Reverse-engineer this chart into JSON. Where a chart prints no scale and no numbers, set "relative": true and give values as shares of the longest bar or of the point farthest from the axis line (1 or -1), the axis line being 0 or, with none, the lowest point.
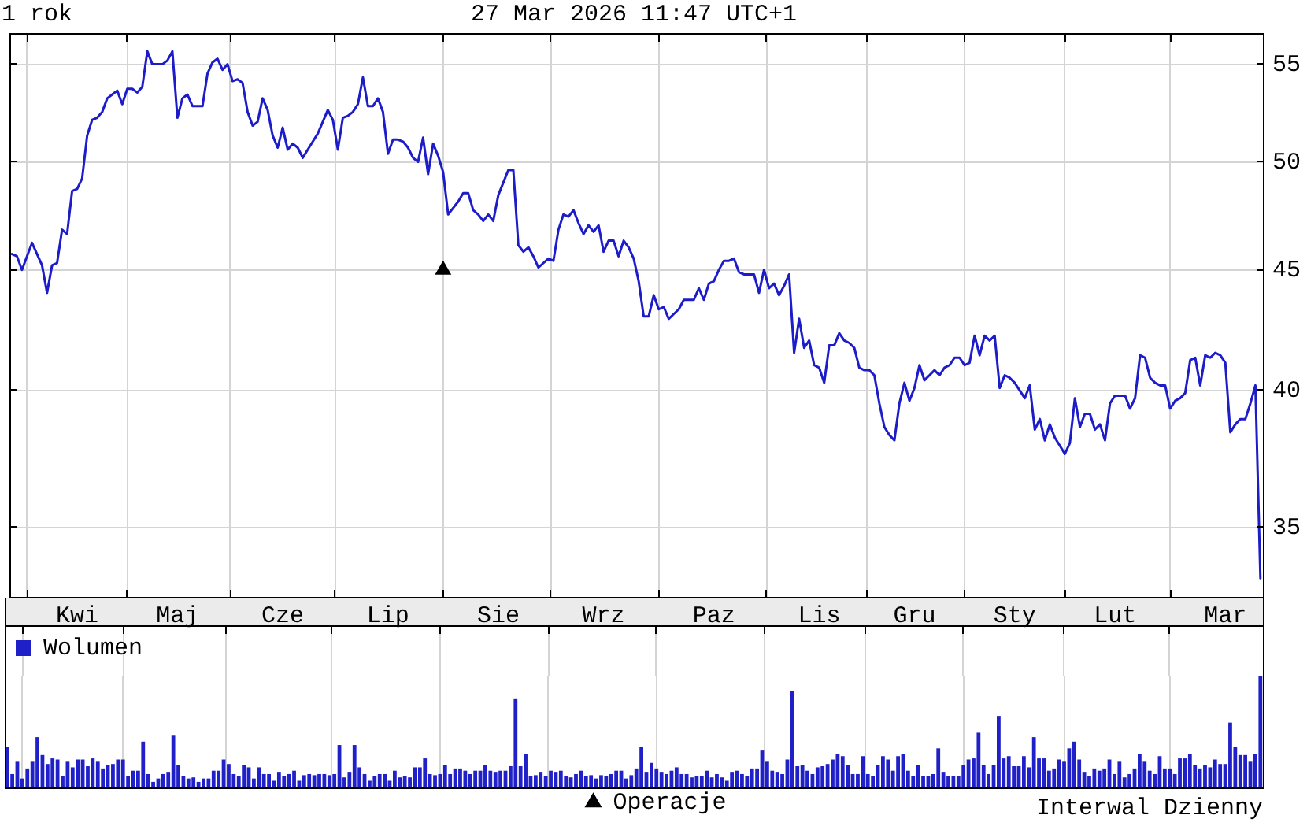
{
  "chart_data": [
    {
      "type": "line",
      "title": "1 rok",
      "subtitle": "27 Mar 2026 11:47 UTC+1",
      "annotations": [
        "Interwal Dzienny"
      ],
      "categories": [
        null,
        null,
        null,
        null,
        null,
        null,
        null,
        null,
        null,
        null,
        null,
        null,
        null,
        "Kwi",
        null,
        null,
        null,
        null,
        null,
        null,
        null,
        null,
        null,
        null,
        null,
        null,
        null,
        null,
        null,
        null,
        null,
        null,
        null,
        "Maj",
        null,
        null,
        null,
        null,
        null,
        null,
        null,
        null,
        null,
        null,
        null,
        null,
        null,
        null,
        null,
        null,
        null,
        null,
        null,
        null,
        "Cze",
        null,
        null,
        null,
        null,
        null,
        null,
        null,
        null,
        null,
        null,
        null,
        null,
        null,
        null,
        null,
        null,
        null,
        null,
        null,
        null,
        "Lip",
        null,
        null,
        null,
        null,
        null,
        null,
        null,
        null,
        null,
        null,
        null,
        null,
        null,
        null,
        null,
        null,
        null,
        null,
        null,
        null,
        null,
        "Sie",
        null,
        null,
        null,
        null,
        null,
        null,
        null,
        null,
        null,
        null,
        null,
        null,
        null,
        null,
        null,
        null,
        null,
        null,
        null,
        null,
        "Wrz",
        null,
        null,
        null,
        null,
        null,
        null,
        null,
        null,
        null,
        null,
        null,
        null,
        null,
        null,
        null,
        null,
        null,
        null,
        null,
        null,
        null,
        "Paz",
        null,
        null,
        null,
        null,
        null,
        null,
        null,
        null,
        null,
        null,
        null,
        null,
        null,
        null,
        null,
        null,
        null,
        null,
        null,
        null,
        "Lis",
        null,
        null,
        null,
        null,
        null,
        null,
        null,
        null,
        null,
        null,
        null,
        null,
        null,
        null,
        null,
        null,
        null,
        null,
        "Gru",
        null,
        null,
        null,
        null,
        null,
        null,
        null,
        null,
        null,
        null,
        null,
        null,
        null,
        null,
        null,
        null,
        null,
        null,
        null,
        "Sty",
        null,
        null,
        null,
        null,
        null,
        null,
        null,
        null,
        null,
        null,
        null,
        null,
        null,
        null,
        null,
        null,
        null,
        null,
        null,
        "Lut",
        null,
        null,
        null,
        null,
        null,
        null,
        null,
        null,
        null,
        null,
        null,
        null,
        null,
        null,
        null,
        null,
        null,
        null,
        null,
        null,
        null,
        "Mar",
        null,
        null,
        null,
        null,
        null,
        null,
        null
      ],
      "ylim": [
        32.7,
        56.7
      ],
      "yticks": [
        35,
        40,
        45,
        50,
        55
      ],
      "log": true,
      "grid": true,
      "legend": "bottom",
      "series": [
        {
          "color": "#1c1cc8",
          "marker": "none",
          "values": [
            45.7,
            45.6,
            45.0,
            45.6,
            46.2,
            45.7,
            45.2,
            44.0,
            45.2,
            45.3,
            46.8,
            46.6,
            48.6,
            48.7,
            49.2,
            51.3,
            52.1,
            52.2,
            52.5,
            53.2,
            53.4,
            53.6,
            52.9,
            53.7,
            53.7,
            53.5,
            53.8,
            55.7,
            55.0,
            55.0,
            55.0,
            55.2,
            55.7,
            52.2,
            53.2,
            53.4,
            52.8,
            52.8,
            52.8,
            54.5,
            55.1,
            55.3,
            54.7,
            55.0,
            54.1,
            54.2,
            54.0,
            52.5,
            51.8,
            52.0,
            53.2,
            52.6,
            51.3,
            50.7,
            51.7,
            50.6,
            50.9,
            50.7,
            50.2,
            50.6,
            51.0,
            51.4,
            52.0,
            52.6,
            52.1,
            50.6,
            52.2,
            52.3,
            52.5,
            52.9,
            54.3,
            52.8,
            52.8,
            53.2,
            52.5,
            50.4,
            51.1,
            51.1,
            51.0,
            50.7,
            50.2,
            50.0,
            51.2,
            49.4,
            50.9,
            50.3,
            49.5,
            47.5,
            47.8,
            48.1,
            48.5,
            48.5,
            47.7,
            47.5,
            47.2,
            47.5,
            47.2,
            48.4,
            49.0,
            49.6,
            49.6,
            46.1,
            45.8,
            46.0,
            45.6,
            45.1,
            45.3,
            45.5,
            45.4,
            46.8,
            47.5,
            47.4,
            47.7,
            47.1,
            46.6,
            47.0,
            46.7,
            47.0,
            45.8,
            46.3,
            46.3,
            45.6,
            46.3,
            46.0,
            45.5,
            44.5,
            43.0,
            43.0,
            43.9,
            43.3,
            43.4,
            42.9,
            43.1,
            43.3,
            43.7,
            43.7,
            43.7,
            44.2,
            43.7,
            44.4,
            44.5,
            45.0,
            45.4,
            45.4,
            45.5,
            44.9,
            44.8,
            44.8,
            44.8,
            44.0,
            45.0,
            44.2,
            44.4,
            43.9,
            44.3,
            44.8,
            41.5,
            42.9,
            41.7,
            42.0,
            41.0,
            40.9,
            40.3,
            41.8,
            41.8,
            42.3,
            42.0,
            41.9,
            41.7,
            40.9,
            40.8,
            40.8,
            40.6,
            39.5,
            38.6,
            38.3,
            38.1,
            39.5,
            40.3,
            39.6,
            40.1,
            41.0,
            40.4,
            40.6,
            40.8,
            40.6,
            40.9,
            41.0,
            41.3,
            41.3,
            41.0,
            41.1,
            42.2,
            41.4,
            42.2,
            42.0,
            42.2,
            40.1,
            40.6,
            40.5,
            40.3,
            40.0,
            39.7,
            40.2,
            38.5,
            38.9,
            38.1,
            38.7,
            38.2,
            37.9,
            37.6,
            38.0,
            39.7,
            38.6,
            39.1,
            39.1,
            38.5,
            38.7,
            38.1,
            39.5,
            39.8,
            39.8,
            39.8,
            39.3,
            39.7,
            41.4,
            41.3,
            40.5,
            40.3,
            40.2,
            40.2,
            39.3,
            39.6,
            39.7,
            39.9,
            41.2,
            41.3,
            40.2,
            41.4,
            41.3,
            41.5,
            41.4,
            41.1,
            38.4,
            38.7,
            38.9,
            38.9,
            39.5,
            40.2,
            33.3
          ]
        },
        {
          "name": "Operacje",
          "type": "scatter",
          "marker": "triangle",
          "color": "#000000",
          "values": [
            null,
            null,
            null,
            null,
            null,
            null,
            null,
            null,
            null,
            null,
            null,
            null,
            null,
            null,
            null,
            null,
            null,
            null,
            null,
            null,
            null,
            null,
            null,
            null,
            null,
            null,
            null,
            null,
            null,
            null,
            null,
            null,
            null,
            null,
            null,
            null,
            null,
            null,
            null,
            null,
            null,
            null,
            null,
            null,
            null,
            null,
            null,
            null,
            null,
            null,
            null,
            null,
            null,
            null,
            null,
            null,
            null,
            null,
            null,
            null,
            null,
            null,
            null,
            null,
            null,
            null,
            null,
            null,
            null,
            null,
            null,
            null,
            null,
            null,
            null,
            null,
            null,
            null,
            null,
            null,
            null,
            null,
            null,
            null,
            null,
            null,
            45,
            null,
            null,
            null,
            null,
            null,
            null,
            null,
            null,
            null,
            null,
            null,
            null,
            null,
            null,
            null,
            null,
            null,
            null,
            null,
            null,
            null,
            null,
            null,
            null,
            null,
            null,
            null,
            null,
            null,
            null,
            null,
            null,
            null,
            null,
            null,
            null,
            null,
            null,
            null,
            null,
            null,
            null,
            null,
            null,
            null,
            null,
            null,
            null,
            null,
            null,
            null,
            null,
            null,
            null,
            null,
            null,
            null,
            null,
            null,
            null,
            null,
            null,
            null,
            null,
            null,
            null,
            null,
            null,
            null,
            null,
            null,
            null,
            null,
            null,
            null,
            null,
            null,
            null,
            null,
            null,
            null,
            null,
            null,
            null,
            null,
            null,
            null,
            null,
            null,
            null,
            null,
            null,
            null,
            null,
            null,
            null,
            null,
            null,
            null,
            null,
            null,
            null,
            null,
            null,
            null,
            null,
            null,
            null,
            null,
            null,
            null,
            null,
            null,
            null,
            null,
            null,
            null,
            null,
            null,
            null,
            null,
            null,
            null,
            null,
            null,
            null,
            null,
            null,
            null,
            null,
            null,
            null,
            null,
            null,
            null,
            null,
            null,
            null,
            null,
            null,
            null,
            null,
            null,
            null,
            null,
            null,
            null,
            null,
            null,
            null,
            null,
            null,
            null,
            null,
            null,
            null,
            null,
            null,
            null,
            null,
            null,
            null,
            null
          ]
        }
      ]
    },
    {
      "type": "bar",
      "relative": true,
      "grid": "x",
      "legend": "top left",
      "tick_labels": false,
      "categories": [
        null,
        null,
        null,
        null,
        null,
        null,
        null,
        null,
        null,
        null,
        null,
        null,
        null,
        null,
        null,
        null,
        null,
        null,
        null,
        null,
        null,
        null,
        null,
        null,
        null,
        null,
        null,
        null,
        null,
        null,
        null,
        null,
        null,
        null,
        null,
        null,
        null,
        null,
        null,
        null,
        null,
        null,
        null,
        null,
        null,
        null,
        null,
        null,
        null,
        null,
        null,
        null,
        null,
        null,
        null,
        null,
        null,
        null,
        null,
        null,
        null,
        null,
        null,
        null,
        null,
        null,
        null,
        null,
        null,
        null,
        null,
        null,
        null,
        null,
        null,
        null,
        null,
        null,
        null,
        null,
        null,
        null,
        null,
        null,
        null,
        null,
        null,
        null,
        null,
        null,
        null,
        null,
        null,
        null,
        null,
        null,
        null,
        null,
        null,
        null,
        null,
        null,
        null,
        null,
        null,
        null,
        null,
        null,
        null,
        null,
        null,
        null,
        null,
        null,
        null,
        null,
        null,
        null,
        null,
        null,
        null,
        null,
        null,
        null,
        null,
        null,
        null,
        null,
        null,
        null,
        null,
        null,
        null,
        null,
        null,
        null,
        null,
        null,
        null,
        null,
        null,
        null,
        null,
        null,
        null,
        null,
        null,
        null,
        null,
        null,
        null,
        null,
        null,
        null,
        null,
        null,
        null,
        null,
        null,
        null,
        null,
        null,
        null,
        null,
        null,
        null,
        null,
        null,
        null,
        null,
        null,
        null,
        null,
        null,
        null,
        null,
        null,
        null,
        null,
        null,
        null,
        null,
        null,
        null,
        null,
        null,
        null,
        null,
        null,
        null,
        null,
        null,
        null,
        null,
        null,
        null,
        null,
        null,
        null,
        null,
        null,
        null,
        null,
        null,
        null,
        null,
        null,
        null,
        null,
        null,
        null,
        null,
        null,
        null,
        null,
        null,
        null,
        null,
        null,
        null,
        null,
        null,
        null,
        null,
        null,
        null,
        null,
        null,
        null,
        null,
        null,
        null,
        null,
        null,
        null,
        null,
        null,
        null,
        null,
        null,
        null,
        null,
        null,
        null,
        null,
        null,
        null,
        null,
        null,
        null
      ],
      "series": [
        {
          "name": "Wolumen",
          "color": "#2020c8",
          "values": [
            0.36,
            0.12,
            0.23,
            0.08,
            0.17,
            0.23,
            0.45,
            0.29,
            0.21,
            0.26,
            0.25,
            0.1,
            0.23,
            0.18,
            0.25,
            0.25,
            0.19,
            0.26,
            0.23,
            0.17,
            0.2,
            0.21,
            0.25,
            0.25,
            0.1,
            0.15,
            0.15,
            0.41,
            0.12,
            0.05,
            0.08,
            0.12,
            0.14,
            0.47,
            0.2,
            0.1,
            0.08,
            0.09,
            0.05,
            0.08,
            0.08,
            0.15,
            0.15,
            0.25,
            0.21,
            0.12,
            0.1,
            0.2,
            0.18,
            0.08,
            0.18,
            0.12,
            0.12,
            0.06,
            0.14,
            0.1,
            0.12,
            0.15,
            0.06,
            0.11,
            0.12,
            0.11,
            0.12,
            0.12,
            0.11,
            0.12,
            0.38,
            0.09,
            0.14,
            0.38,
            0.18,
            0.12,
            0.06,
            0.1,
            0.12,
            0.12,
            0.06,
            0.15,
            0.09,
            0.1,
            0.09,
            0.18,
            0.18,
            0.26,
            0.12,
            0.11,
            0.12,
            0.2,
            0.12,
            0.17,
            0.17,
            0.15,
            0.12,
            0.15,
            0.15,
            0.2,
            0.15,
            0.14,
            0.15,
            0.15,
            0.19,
            0.79,
            0.19,
            0.3,
            0.1,
            0.11,
            0.14,
            0.1,
            0.15,
            0.14,
            0.15,
            0.1,
            0.09,
            0.12,
            0.15,
            0.1,
            0.11,
            0.08,
            0.11,
            0.1,
            0.12,
            0.15,
            0.15,
            0.08,
            0.11,
            0.17,
            0.36,
            0.14,
            0.22,
            0.17,
            0.14,
            0.12,
            0.15,
            0.18,
            0.12,
            0.12,
            0.09,
            0.1,
            0.1,
            0.15,
            0.09,
            0.12,
            0.09,
            0.06,
            0.14,
            0.15,
            0.12,
            0.1,
            0.17,
            0.17,
            0.33,
            0.23,
            0.15,
            0.14,
            0.12,
            0.25,
            0.86,
            0.19,
            0.2,
            0.15,
            0.12,
            0.18,
            0.19,
            0.21,
            0.25,
            0.3,
            0.28,
            0.2,
            0.12,
            0.12,
            0.28,
            0.12,
            0.1,
            0.2,
            0.28,
            0.25,
            0.15,
            0.28,
            0.3,
            0.15,
            0.1,
            0.2,
            0.1,
            0.1,
            0.12,
            0.35,
            0.14,
            0.1,
            0.1,
            0.1,
            0.2,
            0.25,
            0.26,
            0.49,
            0.2,
            0.12,
            0.2,
            0.64,
            0.26,
            0.28,
            0.19,
            0.19,
            0.28,
            0.18,
            0.45,
            0.26,
            0.26,
            0.15,
            0.17,
            0.25,
            0.23,
            0.35,
            0.41,
            0.25,
            0.14,
            0.1,
            0.17,
            0.15,
            0.17,
            0.25,
            0.12,
            0.23,
            0.09,
            0.12,
            0.17,
            0.3,
            0.23,
            0.15,
            0.12,
            0.28,
            0.17,
            0.17,
            0.12,
            0.26,
            0.26,
            0.3,
            0.2,
            0.17,
            0.2,
            0.18,
            0.25,
            0.21,
            0.21,
            0.58,
            0.36,
            0.29,
            0.29,
            0.23,
            0.3,
            1
          ]
        }
      ]
    }
  ]
}
